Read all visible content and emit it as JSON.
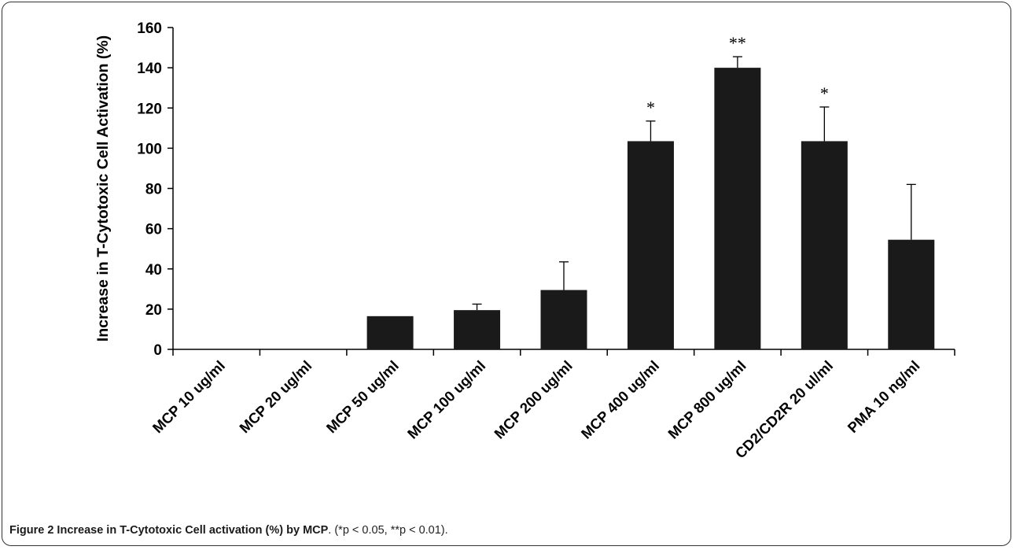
{
  "chart_data": {
    "type": "bar",
    "categories": [
      "MCP 10 ug/ml",
      "MCP 20 ug/ml",
      "MCP 50 ug/ml",
      "MCP 100 ug/ml",
      "MCP 200 ug/ml",
      "MCP 400 ug/ml",
      "MCP  800 ug/ml",
      "CD2/CD2R 20 ul/ml",
      "PMA 10 ng/ml"
    ],
    "values": [
      0,
      0,
      16.5,
      19.5,
      29.5,
      103.5,
      140,
      103.5,
      54.5
    ],
    "errors": [
      0,
      0,
      0,
      3,
      14,
      10,
      5.5,
      17,
      27.5
    ],
    "significance": [
      "",
      "",
      "",
      "",
      "",
      "*",
      "**",
      "*",
      ""
    ],
    "ylabel": "Increase in T-Cytotoxic Cell Activation (%)",
    "xlabel": "",
    "ylim": [
      0,
      160
    ],
    "yticks": [
      0,
      20,
      40,
      60,
      80,
      100,
      120,
      140,
      160
    ],
    "bar_color": "#1a1a1a",
    "grid": false
  },
  "caption": {
    "label": "Figure 2 Increase in T-Cytotoxic Cell activation (%) by MCP",
    "text": ". (*p < 0.05, **p < 0.01)."
  }
}
